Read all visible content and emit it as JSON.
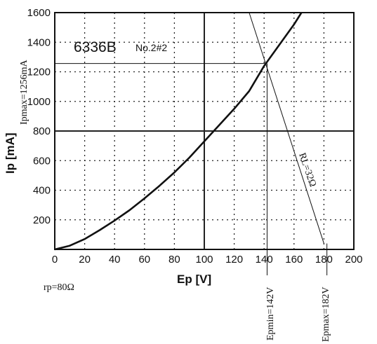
{
  "chart_data": {
    "type": "line",
    "title": "6336B",
    "subtitle": "No.2#2",
    "xlabel": "Ep [V]",
    "ylabel": "Ip [mA]",
    "xlim": [
      0,
      200
    ],
    "ylim": [
      0,
      1600
    ],
    "x_ticks": [
      "0",
      "20",
      "40",
      "60",
      "80",
      "100",
      "120",
      "140",
      "160",
      "180",
      "200"
    ],
    "y_ticks": [
      "200",
      "400",
      "600",
      "800",
      "1000",
      "1200",
      "1400",
      "1600"
    ],
    "grid": true,
    "series": [
      {
        "x": [
          0,
          10,
          20,
          30,
          40,
          50,
          60,
          70,
          80,
          90,
          100,
          110,
          120,
          130,
          140,
          150,
          160,
          165
        ],
        "y": [
          0,
          25,
          70,
          130,
          195,
          265,
          345,
          430,
          520,
          620,
          730,
          840,
          950,
          1070,
          1240,
          1380,
          1520,
          1600
        ]
      }
    ],
    "load_line": {
      "label": "RL=32Ω",
      "points": [
        [
          130,
          1600
        ],
        [
          180,
          40
        ]
      ]
    },
    "reference_lines": {
      "ipmax": {
        "label": "Ipmax=1256mA",
        "y": 1256
      },
      "epmin": {
        "label": "Epmin=142V",
        "x": 142
      },
      "epmax": {
        "label": "Epmax=182V",
        "x": 182
      }
    },
    "annotations": {
      "rp": "rp=80Ω"
    }
  },
  "colors": {
    "ink": "#111111",
    "grid": "#222222",
    "background": "#ffffff"
  }
}
